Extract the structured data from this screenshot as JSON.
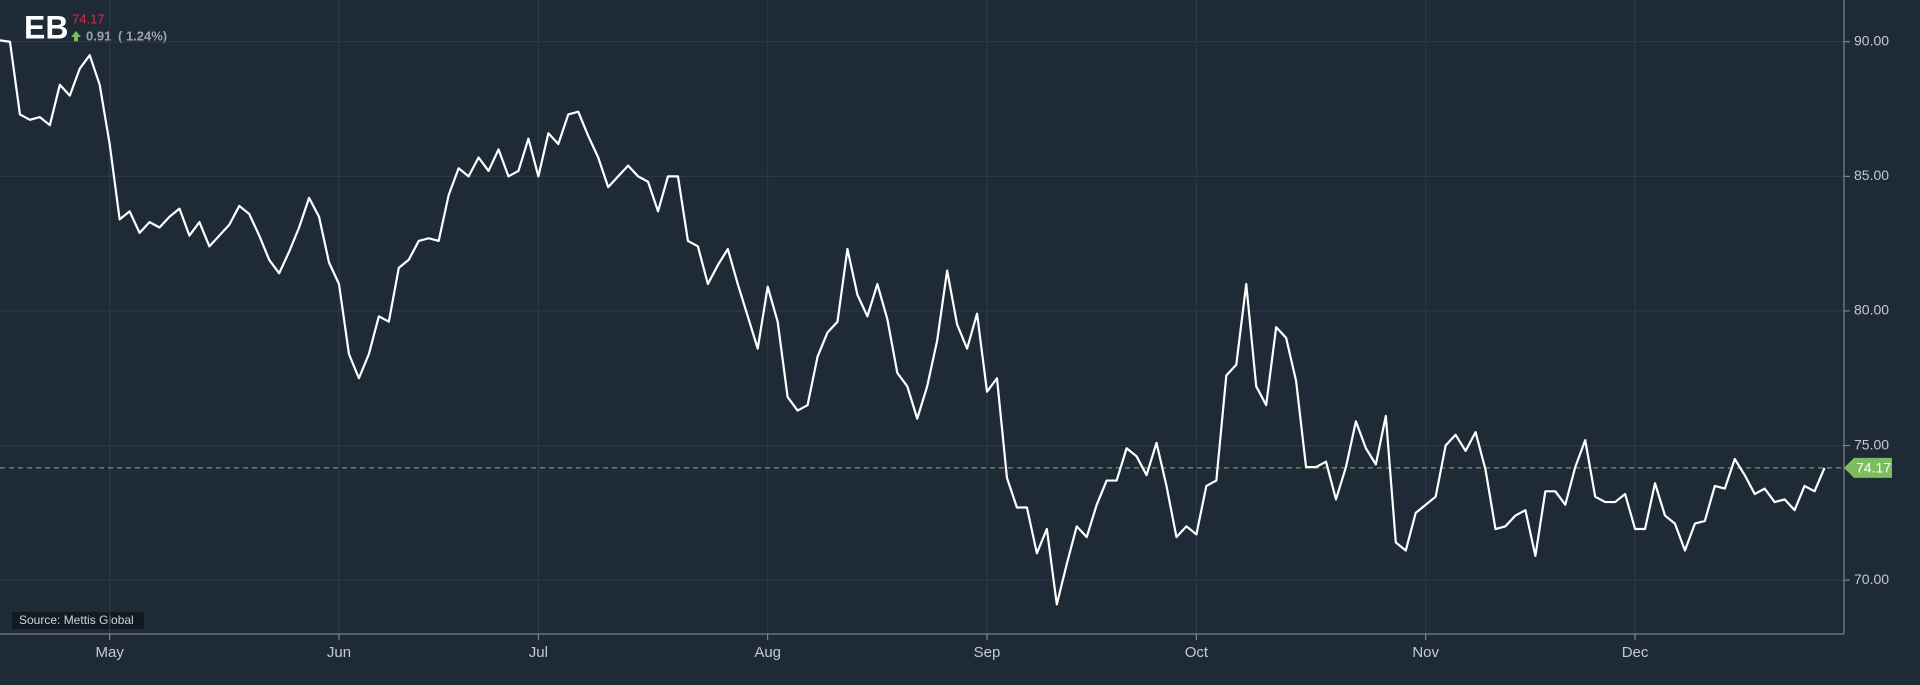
{
  "header": {
    "symbol": "EB",
    "price": 74.17,
    "change": 0.91,
    "change_pct": "( 1.24%)"
  },
  "source": "Source: Mettis Global",
  "chart_data": {
    "type": "line",
    "color": "#ffffff",
    "grid": true,
    "last_price": 74.17,
    "last_price_color": "#7dbd5e",
    "categories": [
      null,
      null,
      null,
      null,
      null,
      null,
      null,
      null,
      null,
      null,
      null,
      "May",
      null,
      null,
      null,
      null,
      null,
      null,
      null,
      null,
      null,
      null,
      null,
      null,
      null,
      null,
      null,
      null,
      null,
      null,
      null,
      null,
      null,
      null,
      "Jun",
      null,
      null,
      null,
      null,
      null,
      null,
      null,
      null,
      null,
      null,
      null,
      null,
      null,
      null,
      null,
      null,
      null,
      null,
      null,
      "Jul",
      null,
      null,
      null,
      null,
      null,
      null,
      null,
      null,
      null,
      null,
      null,
      null,
      null,
      null,
      null,
      null,
      null,
      null,
      null,
      null,
      null,
      null,
      "Aug",
      null,
      null,
      null,
      null,
      null,
      null,
      null,
      null,
      null,
      null,
      null,
      null,
      null,
      null,
      null,
      null,
      null,
      null,
      null,
      null,
      null,
      "Sep",
      null,
      null,
      null,
      null,
      null,
      null,
      null,
      null,
      null,
      null,
      null,
      null,
      null,
      null,
      null,
      null,
      null,
      null,
      null,
      null,
      "Oct",
      null,
      null,
      null,
      null,
      null,
      null,
      null,
      null,
      null,
      null,
      null,
      null,
      null,
      null,
      null,
      null,
      null,
      null,
      null,
      null,
      null,
      null,
      "Nov",
      null,
      null,
      null,
      null,
      null,
      null,
      null,
      null,
      null,
      null,
      null,
      null,
      null,
      null,
      null,
      null,
      null,
      null,
      null,
      null,
      "Dec",
      null,
      null,
      null,
      null,
      null,
      null,
      null,
      null,
      null,
      null,
      null,
      null,
      null,
      null,
      null,
      null,
      null,
      null,
      null
    ],
    "values": [
      90.05,
      90,
      87.3,
      87.1,
      87.2,
      86.9,
      88.4,
      88,
      89,
      89.5,
      88.4,
      86.2,
      83.4,
      83.7,
      82.9,
      83.3,
      83.1,
      83.5,
      83.8,
      82.8,
      83.3,
      82.4,
      82.8,
      83.2,
      83.9,
      83.6,
      82.8,
      81.9,
      81.4,
      82.2,
      83.1,
      84.2,
      83.5,
      81.8,
      81,
      78.4,
      77.5,
      78.4,
      79.8,
      79.6,
      81.6,
      81.9,
      82.6,
      82.7,
      82.6,
      84.3,
      85.3,
      85,
      85.7,
      85.2,
      86,
      85,
      85.2,
      86.4,
      85,
      86.6,
      86.2,
      87.3,
      87.4,
      86.5,
      85.7,
      84.6,
      85,
      85.4,
      85,
      84.8,
      83.7,
      85,
      85,
      82.6,
      82.4,
      81,
      81.7,
      82.3,
      81,
      79.8,
      78.6,
      80.9,
      79.6,
      76.8,
      76.3,
      76.5,
      78.3,
      79.2,
      79.6,
      82.3,
      80.6,
      79.8,
      81,
      79.7,
      77.7,
      77.2,
      76,
      77.2,
      78.9,
      81.5,
      79.5,
      78.6,
      79.9,
      77,
      77.5,
      73.8,
      72.7,
      72.7,
      71,
      71.9,
      69.1,
      70.6,
      72,
      71.6,
      72.8,
      73.7,
      73.7,
      74.9,
      74.6,
      73.9,
      75.1,
      73.5,
      71.6,
      72,
      71.7,
      73.5,
      73.7,
      77.6,
      78,
      81,
      77.2,
      76.5,
      79.4,
      79,
      77.4,
      74.2,
      74.2,
      74.4,
      73,
      74.2,
      75.9,
      74.9,
      74.3,
      76.1,
      71.4,
      71.1,
      72.5,
      72.8,
      73.1,
      75,
      75.4,
      74.8,
      75.5,
      74.1,
      71.9,
      72,
      72.4,
      72.6,
      70.9,
      73.3,
      73.3,
      72.8,
      74.2,
      75.2,
      73.1,
      72.9,
      72.9,
      73.2,
      71.9,
      71.9,
      73.6,
      72.4,
      72.1,
      71.1,
      72.1,
      72.2,
      73.5,
      73.4,
      74.5,
      73.9,
      73.2,
      73.4,
      72.9,
      73,
      72.6,
      73.5,
      73.3,
      74.17
    ],
    "ylim": [
      68,
      91.55
    ],
    "yticks": [
      {
        "value": 70,
        "label": "70.00"
      },
      {
        "value": 75,
        "label": "75.00"
      },
      {
        "value": 80,
        "label": "80.00"
      },
      {
        "value": 85,
        "label": "85.00"
      },
      {
        "value": 90,
        "label": "90.00"
      }
    ]
  }
}
